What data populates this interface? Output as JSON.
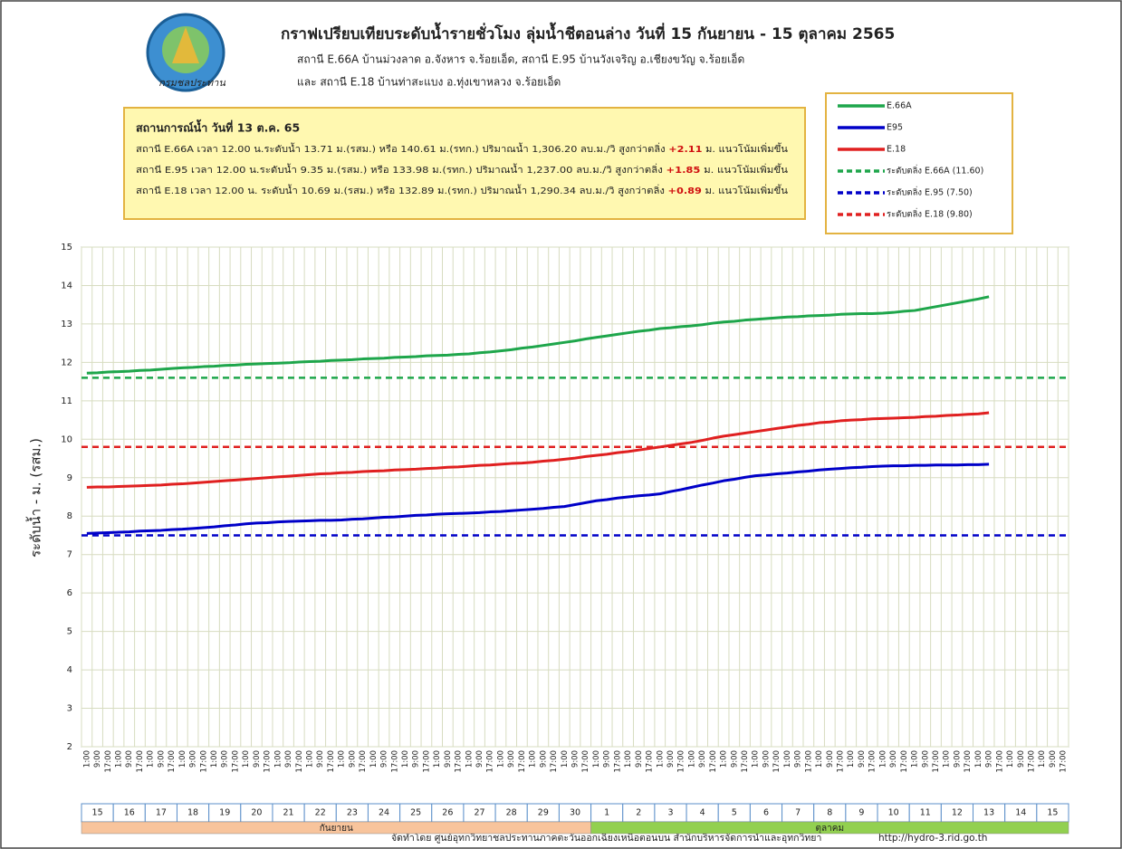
{
  "chart_data": {
    "type": "line",
    "title": "กราฟเปรียบเทียบระดับน้ำรายชั่วโมง  ลุ่มน้ำชีตอนล่าง วันที่  15 กันยายน - 15 ตุลาคม 2565",
    "subtitle": [
      "สถานี E.66A บ้านม่วงลาด อ.จังหาร จ.ร้อยเอ็ด, สถานี E.95 บ้านวังเจริญ อ.เชียงขวัญ จ.ร้อยเอ็ด",
      "และ สถานี E.18 บ้านท่าสะแบง อ.ทุ่งเขาหลวง จ.ร้อยเอ็ด"
    ],
    "logo_text": "กรมชลประทาน",
    "annotation": {
      "title": "สถานการณ์น้ำ วันที่ 13 ต.ค. 65",
      "lines": [
        {
          "text": "สถานี E.66A เวลา 12.00 น.ระดับน้ำ 13.71 ม.(รสม.) หรือ 140.61 ม.(รทก.) ปริมาณน้ำ 1,306.20 ลบ.ม./วิ สูงกว่าตลิ่ง ",
          "highlight": "+2.11",
          "rest": " ม. แนวโน้มเพิ่มขึ้น"
        },
        {
          "text": "สถานี E.95  เวลา 12.00 น.ระดับน้ำ  9.35  ม.(รสม.) หรือ 133.98 ม.(รทก.) ปริมาณน้ำ 1,237.00 ลบ.ม./วิ สูงกว่าตลิ่ง ",
          "highlight": "+1.85",
          "rest": " ม. แนวโน้มเพิ่มขึ้น"
        },
        {
          "text": "สถานี E.18 เวลา 12.00 น. ระดับน้ำ 10.69 ม.(รสม.) หรือ 132.89 ม.(รทก.) ปริมาณน้ำ 1,290.34 ลบ.ม./วิ สูงกว่าตลิ่ง ",
          "highlight": "+0.89",
          "rest": " ม. แนวโน้มเพิ่มขึ้น"
        }
      ]
    },
    "y_label": "ระดับน้ำ  -  ม. (รสม.)",
    "footer": "จัดทำโดย ศูนย์อุทกวิทยาชลประทานภาคตะวันออกเฉียงเหนือตอนบน สำนักบริหารจัดการน้ำและอุทกวิทยา",
    "url": "http://hydro-3.rid.go.th",
    "ylim": [
      2,
      15
    ],
    "yticks": [
      2,
      3,
      4,
      5,
      6,
      7,
      8,
      9,
      10,
      11,
      12,
      13,
      14,
      15
    ],
    "grid": true,
    "categories": [
      "1:00",
      "9:00",
      "17:00",
      "1:00",
      "9:00",
      "17:00",
      "1:00",
      "9:00",
      "17:00",
      "1:00",
      "9:00",
      "17:00",
      "1:00",
      "9:00",
      "17:00",
      "1:00",
      "9:00",
      "17:00",
      "1:00",
      "9:00",
      "17:00",
      "1:00",
      "9:00",
      "17:00",
      "1:00",
      "9:00",
      "17:00",
      "1:00",
      "9:00",
      "17:00",
      "1:00",
      "9:00",
      "17:00",
      "1:00",
      "9:00",
      "17:00",
      "1:00",
      "9:00",
      "17:00",
      "1:00",
      "9:00",
      "17:00",
      "1:00",
      "9:00",
      "17:00",
      "1:00",
      "9:00",
      "17:00",
      "1:00",
      "9:00",
      "17:00",
      "1:00",
      "9:00",
      "17:00",
      "1:00",
      "9:00",
      "17:00",
      "1:00",
      "9:00",
      "17:00",
      "1:00",
      "9:00",
      "17:00",
      "1:00",
      "9:00",
      "17:00",
      "1:00",
      "9:00",
      "17:00",
      "1:00",
      "9:00",
      "17:00",
      "1:00",
      "9:00",
      "17:00",
      "1:00",
      "9:00",
      "17:00",
      "1:00",
      "9:00",
      "17:00",
      "1:00",
      "9:00",
      "17:00",
      "1:00",
      "9:00",
      "17:00",
      "1:00",
      "9:00",
      "17:00",
      "1:00",
      "9:00",
      "17:00"
    ],
    "months": [
      {
        "name": "กันยายน",
        "color": "#f8c49c",
        "days": [
          "15",
          "16",
          "17",
          "18",
          "19",
          "20",
          "21",
          "22",
          "23",
          "24",
          "25",
          "26",
          "27",
          "28",
          "29",
          "30"
        ]
      },
      {
        "name": "ตุลาคม",
        "color": "#92d050",
        "days": [
          "1",
          "2",
          "3",
          "4",
          "5",
          "6",
          "7",
          "8",
          "9",
          "10",
          "11",
          "12",
          "13",
          "14",
          "15"
        ]
      }
    ],
    "series": [
      {
        "name": "E.66A",
        "color": "#1ea64b",
        "values": [
          11.72,
          11.73,
          11.75,
          11.76,
          11.77,
          11.79,
          11.8,
          11.82,
          11.84,
          11.86,
          11.87,
          11.89,
          11.9,
          11.92,
          11.93,
          11.95,
          11.96,
          11.97,
          11.98,
          11.99,
          12.01,
          12.02,
          12.03,
          12.05,
          12.06,
          12.07,
          12.09,
          12.1,
          12.11,
          12.13,
          12.14,
          12.15,
          12.17,
          12.18,
          12.19,
          12.21,
          12.22,
          12.25,
          12.27,
          12.3,
          12.33,
          12.37,
          12.4,
          12.44,
          12.48,
          12.52,
          12.56,
          12.61,
          12.65,
          12.69,
          12.73,
          12.77,
          12.81,
          12.84,
          12.88,
          12.9,
          12.93,
          12.95,
          12.98,
          13.02,
          13.05,
          13.07,
          13.1,
          13.12,
          13.14,
          13.16,
          13.18,
          13.19,
          13.21,
          13.22,
          13.23,
          13.25,
          13.26,
          13.27,
          13.27,
          13.28,
          13.3,
          13.33,
          13.35,
          13.4,
          13.45,
          13.5,
          13.55,
          13.6,
          13.65,
          13.71,
          null,
          null,
          null,
          null,
          null,
          null,
          null
        ]
      },
      {
        "name": "E95",
        "color": "#0000c8",
        "values": [
          7.55,
          7.56,
          7.57,
          7.58,
          7.59,
          7.61,
          7.62,
          7.63,
          7.65,
          7.66,
          7.68,
          7.7,
          7.72,
          7.75,
          7.77,
          7.8,
          7.82,
          7.83,
          7.85,
          7.86,
          7.87,
          7.88,
          7.89,
          7.89,
          7.9,
          7.92,
          7.93,
          7.95,
          7.97,
          7.98,
          8.0,
          8.02,
          8.03,
          8.05,
          8.06,
          8.07,
          8.08,
          8.09,
          8.11,
          8.12,
          8.14,
          8.16,
          8.18,
          8.2,
          8.23,
          8.25,
          8.3,
          8.35,
          8.4,
          8.43,
          8.47,
          8.5,
          8.53,
          8.55,
          8.58,
          8.64,
          8.69,
          8.75,
          8.81,
          8.86,
          8.92,
          8.96,
          9.01,
          9.05,
          9.07,
          9.1,
          9.12,
          9.15,
          9.17,
          9.2,
          9.22,
          9.24,
          9.26,
          9.27,
          9.29,
          9.3,
          9.31,
          9.31,
          9.32,
          9.32,
          9.33,
          9.33,
          9.33,
          9.34,
          9.34,
          9.35,
          null,
          null,
          null,
          null,
          null,
          null,
          null
        ]
      },
      {
        "name": "E.18",
        "color": "#e02020",
        "values": [
          8.75,
          8.76,
          8.76,
          8.77,
          8.78,
          8.79,
          8.8,
          8.81,
          8.83,
          8.84,
          8.86,
          8.88,
          8.9,
          8.92,
          8.94,
          8.96,
          8.98,
          9.0,
          9.02,
          9.04,
          9.06,
          9.08,
          9.1,
          9.11,
          9.13,
          9.14,
          9.16,
          9.17,
          9.18,
          9.2,
          9.21,
          9.22,
          9.24,
          9.25,
          9.27,
          9.28,
          9.3,
          9.32,
          9.33,
          9.35,
          9.37,
          9.38,
          9.4,
          9.43,
          9.45,
          9.48,
          9.51,
          9.55,
          9.58,
          9.61,
          9.65,
          9.68,
          9.72,
          9.76,
          9.8,
          9.84,
          9.88,
          9.92,
          9.97,
          10.03,
          10.08,
          10.12,
          10.16,
          10.2,
          10.24,
          10.28,
          10.32,
          10.36,
          10.39,
          10.43,
          10.45,
          10.48,
          10.5,
          10.51,
          10.53,
          10.54,
          10.55,
          10.56,
          10.57,
          10.59,
          10.6,
          10.62,
          10.63,
          10.65,
          10.66,
          10.69,
          null,
          null,
          null,
          null,
          null,
          null,
          null
        ]
      }
    ],
    "reference_lines": [
      {
        "name": "ระดับตลิ่ง E.66A (11.60)",
        "color": "#1ea64b",
        "value": 11.6
      },
      {
        "name": "ระดับตลิ่ง E.95 (7.50)",
        "color": "#0000c8",
        "value": 7.5
      },
      {
        "name": "ระดับตลิ่ง E.18 (9.80)",
        "color": "#e02020",
        "value": 9.8
      }
    ]
  }
}
